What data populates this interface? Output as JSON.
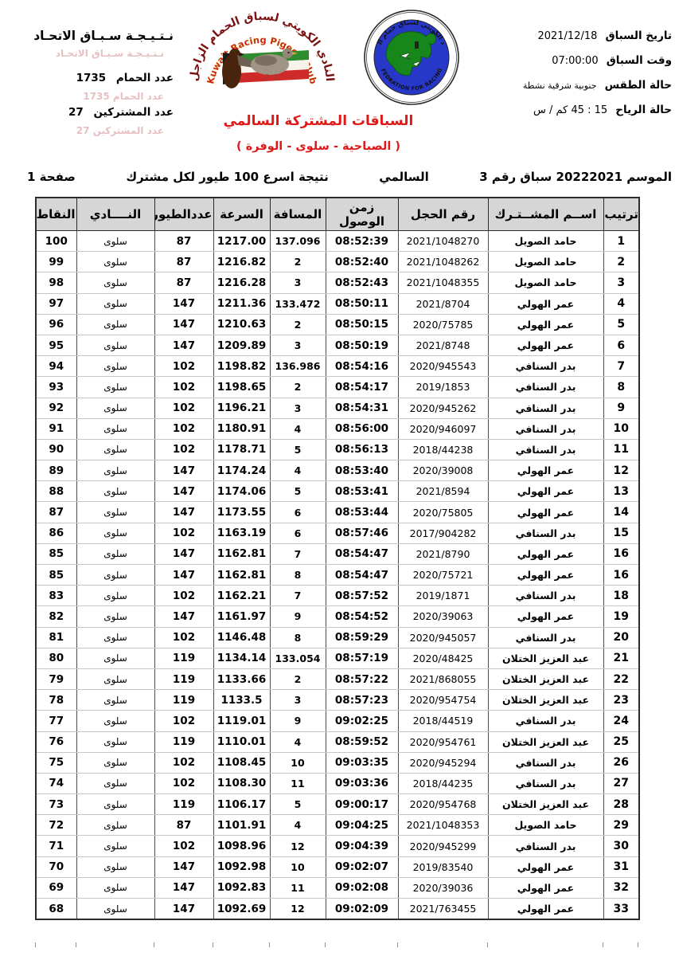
{
  "header_left": {
    "title": "نـتـيـجـة سـبـاق الاتحـاد",
    "pigeons_label": "عدد الحمام",
    "pigeons_count": "1735",
    "participants_label": "عدد المشتركين",
    "participants_count": "27"
  },
  "header_right": {
    "race_date_label": "تاريخ السباق",
    "race_date": "2021/12/18",
    "race_time_label": "وقت السباق",
    "race_time": "07:00:00",
    "weather_label": "حالة الطقس",
    "weather": "جنوبية شرقية نشطة",
    "wind_label": "حالة الرياح",
    "wind": "15 : 45 كم / س"
  },
  "logos": {
    "club": {
      "arabic_arc": "النادي الكويتي لسباق الحمام الزاجل",
      "english_arc": "Kuwait Racing Pigeon Club"
    },
    "federation": {
      "arabic_arc": "الأتحاد الكويتي لسباق حمام الزاجل",
      "english_arc": "KUWAIT FEDRATION FOR RACING PIGEON"
    }
  },
  "titles": {
    "race_title": "السباقات المشتركة السالمي",
    "race_route": "(  الصباحية - سلوى -  الوفرة  )"
  },
  "season_line": {
    "season": "الموسم 20222021 سباق رقم 3",
    "race_name": "السالمي",
    "result_note": "نتيجة اسرع 100 طيور لكل مشترك",
    "page_label": "صفحة 1"
  },
  "table": {
    "columns": [
      {
        "key": "rank",
        "label": "ترتيب"
      },
      {
        "key": "name",
        "label": "اســم المشــتـرك"
      },
      {
        "key": "ring",
        "label": "رقم الحجل"
      },
      {
        "key": "arrival",
        "label": "زمن الوصول"
      },
      {
        "key": "distance",
        "label": "المسافة"
      },
      {
        "key": "speed",
        "label": "السرعة"
      },
      {
        "key": "birds",
        "label": "عددالطيور"
      },
      {
        "key": "club",
        "label": "النــــادي"
      },
      {
        "key": "points",
        "label": "النقاط"
      }
    ],
    "rows": [
      {
        "rank": "1",
        "name": "حامد الصويل",
        "ring": "2021/1048270",
        "arrival": "08:52:39",
        "distance": "137.096",
        "speed": "1217.00",
        "birds": "87",
        "club": "سلوى",
        "points": "100"
      },
      {
        "rank": "2",
        "name": "حامد الصويل",
        "ring": "2021/1048262",
        "arrival": "08:52:40",
        "distance": "2",
        "speed": "1216.82",
        "birds": "87",
        "club": "سلوى",
        "points": "99"
      },
      {
        "rank": "3",
        "name": "حامد الصويل",
        "ring": "2021/1048355",
        "arrival": "08:52:43",
        "distance": "3",
        "speed": "1216.28",
        "birds": "87",
        "club": "سلوى",
        "points": "98"
      },
      {
        "rank": "4",
        "name": "عمر الهولي",
        "ring": "2021/8704",
        "arrival": "08:50:11",
        "distance": "133.472",
        "speed": "1211.36",
        "birds": "147",
        "club": "سلوى",
        "points": "97"
      },
      {
        "rank": "5",
        "name": "عمر الهولي",
        "ring": "2020/75785",
        "arrival": "08:50:15",
        "distance": "2",
        "speed": "1210.63",
        "birds": "147",
        "club": "سلوى",
        "points": "96"
      },
      {
        "rank": "6",
        "name": "عمر الهولي",
        "ring": "2021/8748",
        "arrival": "08:50:19",
        "distance": "3",
        "speed": "1209.89",
        "birds": "147",
        "club": "سلوى",
        "points": "95"
      },
      {
        "rank": "7",
        "name": "بدر السنافي",
        "ring": "2020/945543",
        "arrival": "08:54:16",
        "distance": "136.986",
        "speed": "1198.82",
        "birds": "102",
        "club": "سلوى",
        "points": "94"
      },
      {
        "rank": "8",
        "name": "بدر السنافي",
        "ring": "2019/1853",
        "arrival": "08:54:17",
        "distance": "2",
        "speed": "1198.65",
        "birds": "102",
        "club": "سلوى",
        "points": "93"
      },
      {
        "rank": "9",
        "name": "بدر السنافي",
        "ring": "2020/945262",
        "arrival": "08:54:31",
        "distance": "3",
        "speed": "1196.21",
        "birds": "102",
        "club": "سلوى",
        "points": "92"
      },
      {
        "rank": "10",
        "name": "بدر السنافي",
        "ring": "2020/946097",
        "arrival": "08:56:00",
        "distance": "4",
        "speed": "1180.91",
        "birds": "102",
        "club": "سلوى",
        "points": "91"
      },
      {
        "rank": "11",
        "name": "بدر السنافي",
        "ring": "2018/44238",
        "arrival": "08:56:13",
        "distance": "5",
        "speed": "1178.71",
        "birds": "102",
        "club": "سلوى",
        "points": "90"
      },
      {
        "rank": "12",
        "name": "عمر الهولي",
        "ring": "2020/39008",
        "arrival": "08:53:40",
        "distance": "4",
        "speed": "1174.24",
        "birds": "147",
        "club": "سلوى",
        "points": "89"
      },
      {
        "rank": "13",
        "name": "عمر الهولي",
        "ring": "2021/8594",
        "arrival": "08:53:41",
        "distance": "5",
        "speed": "1174.06",
        "birds": "147",
        "club": "سلوى",
        "points": "88"
      },
      {
        "rank": "14",
        "name": "عمر الهولي",
        "ring": "2020/75805",
        "arrival": "08:53:44",
        "distance": "6",
        "speed": "1173.55",
        "birds": "147",
        "club": "سلوى",
        "points": "87"
      },
      {
        "rank": "15",
        "name": "بدر السنافي",
        "ring": "2017/904282",
        "arrival": "08:57:46",
        "distance": "6",
        "speed": "1163.19",
        "birds": "102",
        "club": "سلوى",
        "points": "86"
      },
      {
        "rank": "16",
        "name": "عمر الهولي",
        "ring": "2021/8790",
        "arrival": "08:54:47",
        "distance": "7",
        "speed": "1162.81",
        "birds": "147",
        "club": "سلوى",
        "points": "85"
      },
      {
        "rank": "16",
        "name": "عمر الهولي",
        "ring": "2020/75721",
        "arrival": "08:54:47",
        "distance": "8",
        "speed": "1162.81",
        "birds": "147",
        "club": "سلوى",
        "points": "85"
      },
      {
        "rank": "18",
        "name": "بدر السنافي",
        "ring": "2019/1871",
        "arrival": "08:57:52",
        "distance": "7",
        "speed": "1162.21",
        "birds": "102",
        "club": "سلوى",
        "points": "83"
      },
      {
        "rank": "19",
        "name": "عمر الهولي",
        "ring": "2020/39063",
        "arrival": "08:54:52",
        "distance": "9",
        "speed": "1161.97",
        "birds": "147",
        "club": "سلوى",
        "points": "82"
      },
      {
        "rank": "20",
        "name": "بدر السنافي",
        "ring": "2020/945057",
        "arrival": "08:59:29",
        "distance": "8",
        "speed": "1146.48",
        "birds": "102",
        "club": "سلوى",
        "points": "81"
      },
      {
        "rank": "21",
        "name": "عبد العزيز الختلان",
        "ring": "2020/48425",
        "arrival": "08:57:19",
        "distance": "133.054",
        "speed": "1134.14",
        "birds": "119",
        "club": "سلوى",
        "points": "80"
      },
      {
        "rank": "22",
        "name": "عبد العزيز الختلان",
        "ring": "2021/868055",
        "arrival": "08:57:22",
        "distance": "2",
        "speed": "1133.66",
        "birds": "119",
        "club": "سلوى",
        "points": "79"
      },
      {
        "rank": "23",
        "name": "عبد العزيز الختلان",
        "ring": "2020/954754",
        "arrival": "08:57:23",
        "distance": "3",
        "speed": "1133.5",
        "birds": "119",
        "club": "سلوى",
        "points": "78"
      },
      {
        "rank": "24",
        "name": "بدر السنافي",
        "ring": "2018/44519",
        "arrival": "09:02:25",
        "distance": "9",
        "speed": "1119.01",
        "birds": "102",
        "club": "سلوى",
        "points": "77"
      },
      {
        "rank": "25",
        "name": "عبد العزيز الختلان",
        "ring": "2020/954761",
        "arrival": "08:59:52",
        "distance": "4",
        "speed": "1110.01",
        "birds": "119",
        "club": "سلوى",
        "points": "76"
      },
      {
        "rank": "26",
        "name": "بدر السنافي",
        "ring": "2020/945294",
        "arrival": "09:03:35",
        "distance": "10",
        "speed": "1108.45",
        "birds": "102",
        "club": "سلوى",
        "points": "75"
      },
      {
        "rank": "27",
        "name": "بدر السنافي",
        "ring": "2018/44235",
        "arrival": "09:03:36",
        "distance": "11",
        "speed": "1108.30",
        "birds": "102",
        "club": "سلوى",
        "points": "74"
      },
      {
        "rank": "28",
        "name": "عبد العزيز الختلان",
        "ring": "2020/954768",
        "arrival": "09:00:17",
        "distance": "5",
        "speed": "1106.17",
        "birds": "119",
        "club": "سلوى",
        "points": "73"
      },
      {
        "rank": "29",
        "name": "حامد الصويل",
        "ring": "2021/1048353",
        "arrival": "09:04:25",
        "distance": "4",
        "speed": "1101.91",
        "birds": "87",
        "club": "سلوى",
        "points": "72"
      },
      {
        "rank": "30",
        "name": "بدر السنافي",
        "ring": "2020/945299",
        "arrival": "09:04:39",
        "distance": "12",
        "speed": "1098.96",
        "birds": "102",
        "club": "سلوى",
        "points": "71"
      },
      {
        "rank": "31",
        "name": "عمر الهولي",
        "ring": "2019/83540",
        "arrival": "09:02:07",
        "distance": "10",
        "speed": "1092.98",
        "birds": "147",
        "club": "سلوى",
        "points": "70"
      },
      {
        "rank": "32",
        "name": "عمر الهولي",
        "ring": "2020/39036",
        "arrival": "09:02:08",
        "distance": "11",
        "speed": "1092.83",
        "birds": "147",
        "club": "سلوى",
        "points": "69"
      },
      {
        "rank": "33",
        "name": "عمر الهولي",
        "ring": "2021/763455",
        "arrival": "09:02:09",
        "distance": "12",
        "speed": "1092.69",
        "birds": "147",
        "club": "سلوى",
        "points": "68"
      }
    ]
  },
  "colors": {
    "accent_red": "#e01818",
    "header_gray": "#d6d6d6",
    "logo_blue": "#2737c8",
    "logo_green": "#17871c",
    "flag_green": "#2e8b2e",
    "flag_red": "#cf2a2a"
  }
}
